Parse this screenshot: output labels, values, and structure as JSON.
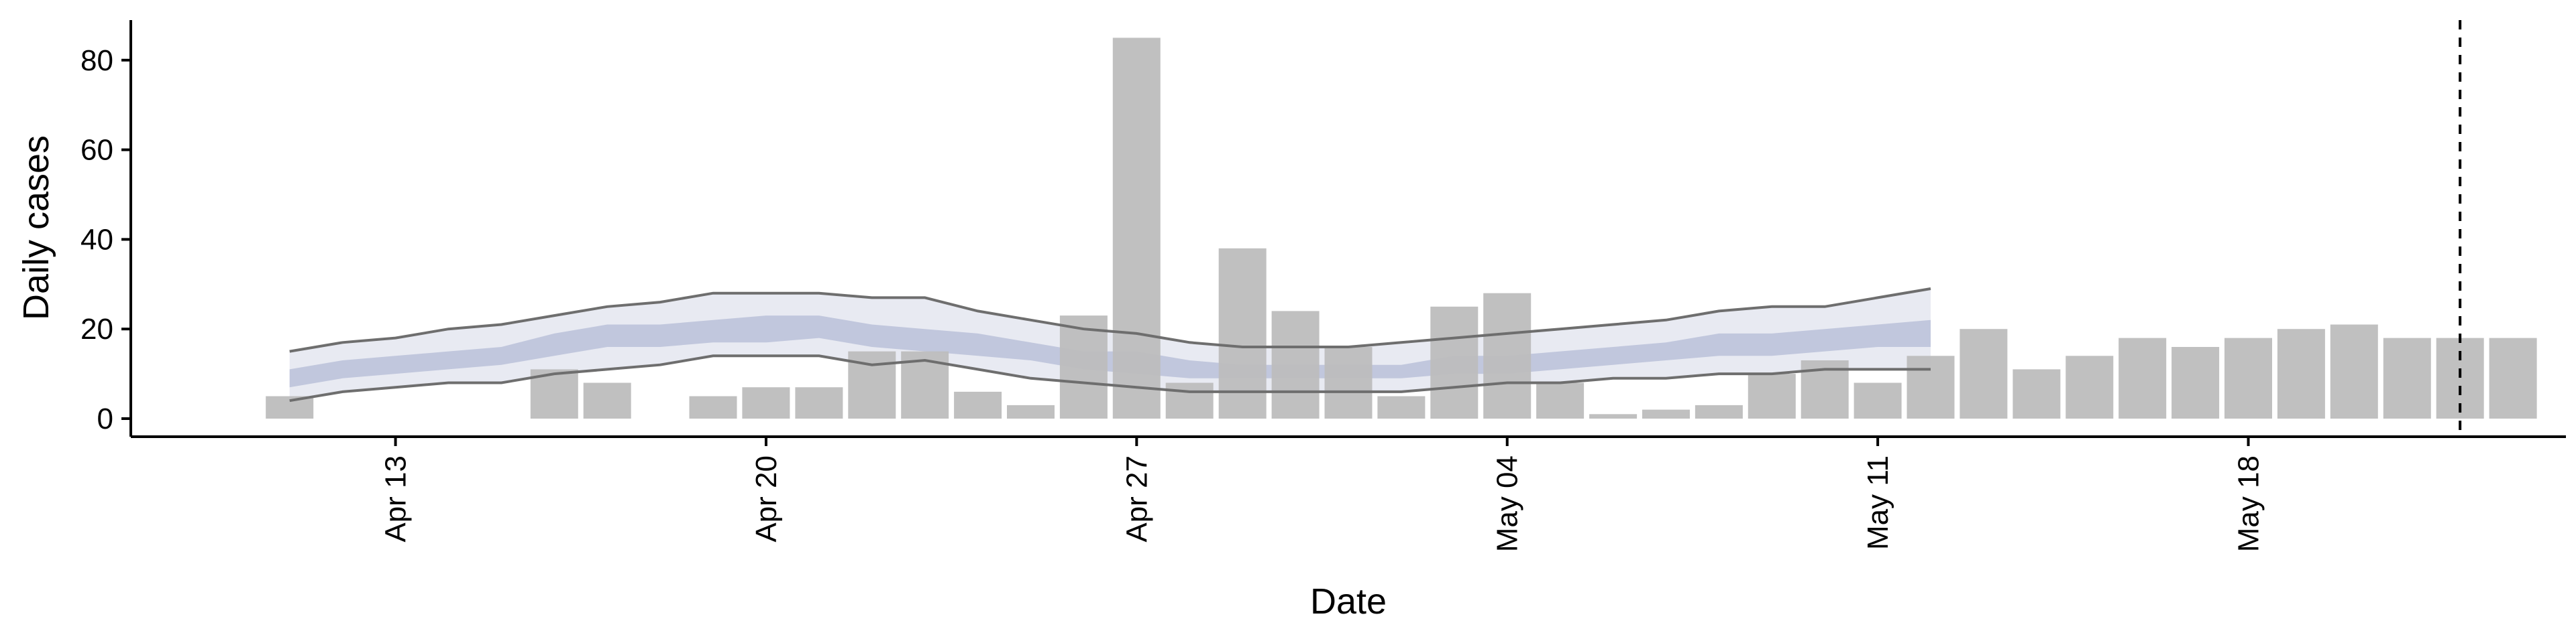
{
  "chart_data": {
    "type": "bar",
    "xlabel": "Date",
    "ylabel": "Daily cases",
    "ylim": [
      0,
      85
    ],
    "yticks": [
      0,
      20,
      40,
      60,
      80
    ],
    "xlim": [
      "2020-04-08",
      "2020-05-24"
    ],
    "xticks": [
      {
        "date": "2020-04-13",
        "label": "Apr 13"
      },
      {
        "date": "2020-04-20",
        "label": "Apr 20"
      },
      {
        "date": "2020-04-27",
        "label": "Apr 27"
      },
      {
        "date": "2020-05-04",
        "label": "May 04"
      },
      {
        "date": "2020-05-11",
        "label": "May 11"
      },
      {
        "date": "2020-05-18",
        "label": "May 18"
      }
    ],
    "grid": false,
    "colors": {
      "bars": "#bdbdbd",
      "outer_band": "#e8eaf2",
      "inner_band": "#bac1d9",
      "bound_lines": "#6e6e6e",
      "axis": "#000000"
    },
    "series": [
      {
        "type": "bar",
        "dates": [
          "2020-04-11",
          "2020-04-12",
          "2020-04-13",
          "2020-04-14",
          "2020-04-15",
          "2020-04-16",
          "2020-04-17",
          "2020-04-18",
          "2020-04-19",
          "2020-04-20",
          "2020-04-21",
          "2020-04-22",
          "2020-04-23",
          "2020-04-24",
          "2020-04-25",
          "2020-04-26",
          "2020-04-27",
          "2020-04-28",
          "2020-04-29",
          "2020-04-30",
          "2020-05-01",
          "2020-05-02",
          "2020-05-03",
          "2020-05-04",
          "2020-05-05",
          "2020-05-06",
          "2020-05-07",
          "2020-05-08",
          "2020-05-09",
          "2020-05-10",
          "2020-05-11",
          "2020-05-12",
          "2020-05-13",
          "2020-05-14",
          "2020-05-15",
          "2020-05-16",
          "2020-05-17",
          "2020-05-18",
          "2020-05-19",
          "2020-05-20",
          "2020-05-21",
          "2020-05-22",
          "2020-05-23"
        ],
        "values": [
          5,
          0,
          0,
          0,
          0,
          11,
          8,
          0,
          5,
          7,
          7,
          15,
          15,
          6,
          3,
          23,
          85,
          8,
          38,
          24,
          16,
          5,
          25,
          28,
          8,
          1,
          2,
          3,
          10,
          13,
          8,
          14,
          20,
          11,
          14,
          18,
          16,
          18,
          20,
          21,
          18,
          18,
          18
        ]
      },
      {
        "type": "band",
        "dates": [
          "2020-04-11",
          "2020-04-12",
          "2020-04-13",
          "2020-04-14",
          "2020-04-15",
          "2020-04-16",
          "2020-04-17",
          "2020-04-18",
          "2020-04-19",
          "2020-04-20",
          "2020-04-21",
          "2020-04-22",
          "2020-04-23",
          "2020-04-24",
          "2020-04-25",
          "2020-04-26",
          "2020-04-27",
          "2020-04-28",
          "2020-04-29",
          "2020-04-30",
          "2020-05-01",
          "2020-05-02",
          "2020-05-03",
          "2020-05-04",
          "2020-05-05",
          "2020-05-06",
          "2020-05-07",
          "2020-05-08",
          "2020-05-09",
          "2020-05-10",
          "2020-05-11",
          "2020-05-12"
        ],
        "outer_low": [
          4,
          6,
          7,
          8,
          8,
          10,
          11,
          12,
          14,
          14,
          14,
          12,
          13,
          11,
          9,
          8,
          7,
          6,
          6,
          6,
          6,
          6,
          7,
          8,
          8,
          9,
          9,
          10,
          10,
          11,
          11,
          11
        ],
        "outer_high": [
          15,
          17,
          18,
          20,
          21,
          23,
          25,
          26,
          28,
          28,
          28,
          27,
          27,
          24,
          22,
          20,
          19,
          17,
          16,
          16,
          16,
          17,
          18,
          19,
          20,
          21,
          22,
          24,
          25,
          25,
          27,
          29
        ],
        "inner_low": [
          7,
          9,
          10,
          11,
          12,
          14,
          16,
          16,
          17,
          17,
          18,
          16,
          15,
          14,
          13,
          11,
          10,
          9,
          9,
          9,
          9,
          9,
          10,
          10,
          11,
          12,
          13,
          14,
          14,
          15,
          16,
          16
        ],
        "inner_high": [
          11,
          13,
          14,
          15,
          16,
          19,
          21,
          21,
          22,
          23,
          23,
          21,
          20,
          19,
          17,
          15,
          15,
          13,
          12,
          12,
          12,
          12,
          14,
          14,
          15,
          16,
          17,
          19,
          19,
          20,
          21,
          22
        ]
      }
    ],
    "vline": "2020-05-22"
  }
}
